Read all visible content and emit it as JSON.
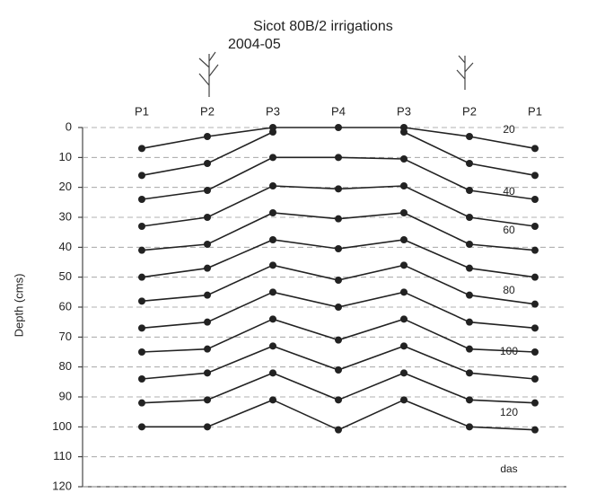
{
  "chart_data": {
    "type": "line",
    "title": "Sicot 80B/2 irrigations",
    "subtitle": "2004-05",
    "y_label": "Depth (cms)",
    "categories": [
      "P1",
      "P2",
      "P3",
      "P4",
      "P3",
      "P2",
      "P1"
    ],
    "color": "#222222",
    "inverted_y": true,
    "grid": true,
    "ylim": [
      0,
      120
    ],
    "yticks": [
      0,
      10,
      20,
      30,
      40,
      50,
      60,
      70,
      80,
      90,
      100,
      110,
      120
    ],
    "series": [
      {
        "values": [
          7,
          3,
          0,
          0,
          0,
          3,
          7
        ]
      },
      {
        "values": [
          16,
          12,
          1.5,
          null,
          1.5,
          12,
          16
        ]
      },
      {
        "values": [
          24,
          21,
          10,
          10,
          10.5,
          21,
          24
        ]
      },
      {
        "values": [
          33,
          30,
          19.5,
          20.5,
          19.5,
          30,
          33
        ]
      },
      {
        "values": [
          41,
          39,
          28.5,
          30.5,
          28.5,
          39,
          41
        ]
      },
      {
        "values": [
          50,
          47,
          37.5,
          40.5,
          37.5,
          47,
          50
        ]
      },
      {
        "values": [
          58,
          56,
          46,
          51,
          46,
          56,
          59
        ]
      },
      {
        "values": [
          67,
          65,
          55,
          60,
          55,
          65,
          67
        ]
      },
      {
        "values": [
          75,
          74,
          64,
          71,
          64,
          74,
          75
        ]
      },
      {
        "values": [
          84,
          82,
          73,
          81,
          73,
          82,
          84
        ]
      },
      {
        "values": [
          92,
          91,
          82,
          91,
          82,
          91,
          92
        ]
      },
      {
        "values": [
          100,
          100,
          91,
          101,
          91,
          100,
          101
        ]
      }
    ],
    "annotations": [
      "20",
      "40",
      "60",
      "80",
      "100",
      "120",
      "das"
    ]
  }
}
